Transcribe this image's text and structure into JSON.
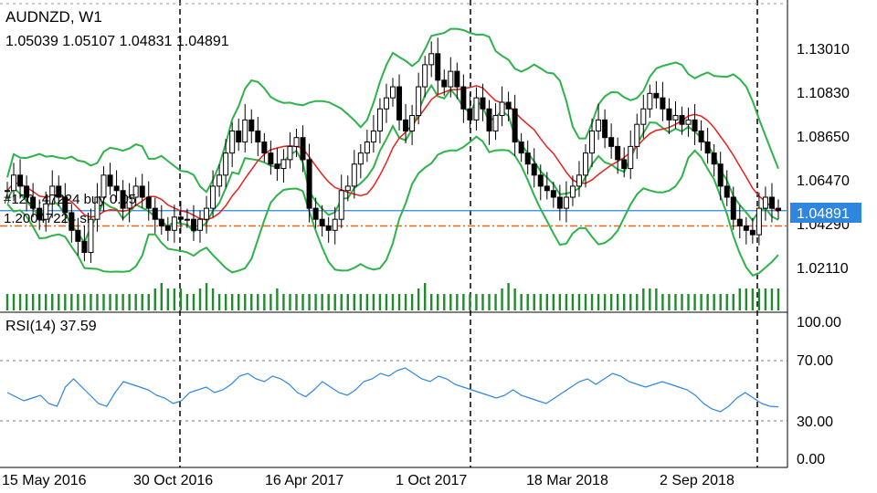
{
  "header": {
    "symbol": "AUDNZD, W1",
    "ohlc": "1.05039 1.05107 1.04831 1.04891",
    "order_line1": "#120 .47224 buy 0.05",
    "order_line2": "1.20047224 sl"
  },
  "colors": {
    "bull_candle": "#000000",
    "bear_candle": "#000000",
    "bollinger": "#2db34a",
    "ma": "#e8201c",
    "price_line": "#2e86de",
    "order_line": "#e8671c",
    "volume": "#1e8c2a",
    "rsi": "#2e86de",
    "price_badge_bg": "#2e86de",
    "price_badge_text": "#ffffff"
  },
  "price_axis": {
    "ticks": [
      "1.13010",
      "1.10830",
      "1.08650",
      "1.06470",
      "1.04290",
      "1.02110"
    ],
    "current_price": "1.04891"
  },
  "rsi_panel": {
    "label": "RSI(14) 37.59",
    "ticks": [
      "100.00",
      "70.00",
      "30.00",
      "0.00"
    ]
  },
  "time_axis": {
    "ticks": [
      "15 May 2016",
      "30 Oct 2016",
      "16 Apr 2017",
      "1 Oct 2017",
      "18 Mar 2018",
      "2 Sep 2018"
    ]
  },
  "chart_data": {
    "type": "line",
    "title": "AUDNZD, W1",
    "xlabel": "",
    "ylabel": "",
    "ylim": [
      1.005,
      1.14
    ],
    "x": [
      "15 May 2016",
      "30 Oct 2016",
      "16 Apr 2017",
      "1 Oct 2017",
      "18 Mar 2018",
      "2 Sep 2018"
    ],
    "series": [
      {
        "name": "",
        "values": [
          1.055,
          1.04,
          1.08,
          1.08,
          1.07,
          1.075
        ]
      }
    ],
    "close_series": [
      1.058,
      1.065,
      1.06,
      1.055,
      1.05,
      1.045,
      1.052,
      1.06,
      1.055,
      1.048,
      1.04,
      1.035,
      1.03,
      1.045,
      1.055,
      1.065,
      1.06,
      1.058,
      1.05,
      1.055,
      1.06,
      1.055,
      1.05,
      1.045,
      1.042,
      1.04,
      1.046,
      1.045,
      1.045,
      1.04,
      1.045,
      1.05,
      1.06,
      1.065,
      1.075,
      1.085,
      1.08,
      1.09,
      1.085,
      1.08,
      1.075,
      1.07,
      1.068,
      1.072,
      1.078,
      1.082,
      1.072,
      1.05,
      1.045,
      1.042,
      1.04,
      1.045,
      1.058,
      1.06,
      1.07,
      1.075,
      1.08,
      1.085,
      1.095,
      1.1,
      1.105,
      1.09,
      1.085,
      1.092,
      1.105,
      1.115,
      1.12,
      1.108,
      1.105,
      1.112,
      1.105,
      1.095,
      1.09,
      1.1,
      1.095,
      1.085,
      1.092,
      1.098,
      1.095,
      1.08,
      1.075,
      1.07,
      1.065,
      1.06,
      1.058,
      1.055,
      1.05,
      1.055,
      1.06,
      1.065,
      1.075,
      1.085,
      1.09,
      1.082,
      1.078,
      1.072,
      1.068,
      1.078,
      1.088,
      1.095,
      1.102,
      1.1,
      1.095,
      1.09,
      1.092,
      1.088,
      1.09,
      1.085,
      1.08,
      1.075,
      1.07,
      1.06,
      1.055,
      1.045,
      1.042,
      1.04,
      1.038,
      1.05,
      1.055,
      1.05,
      1.049
    ],
    "order_line_value": 1.042,
    "rsi_values": [
      48,
      45,
      42,
      44,
      46,
      40,
      38,
      52,
      58,
      52,
      46,
      40,
      38,
      48,
      56,
      54,
      52,
      50,
      46,
      44,
      40,
      42,
      48,
      50,
      52,
      48,
      50,
      54,
      60,
      62,
      58,
      56,
      60,
      58,
      54,
      48,
      45,
      50,
      56,
      52,
      48,
      46,
      50,
      56,
      58,
      62,
      60,
      64,
      66,
      62,
      58,
      56,
      60,
      58,
      54,
      52,
      50,
      48,
      46,
      44,
      46,
      50,
      46,
      44,
      42,
      40,
      44,
      48,
      52,
      56,
      58,
      54,
      58,
      62,
      60,
      56,
      54,
      52,
      54,
      56,
      54,
      52,
      50,
      46,
      40,
      36,
      34,
      38,
      44,
      48,
      44,
      40,
      38,
      37.59
    ],
    "rsi_ylim": [
      0,
      100
    ],
    "volume_values": [
      3,
      3,
      3,
      3,
      3,
      3,
      3,
      3,
      3,
      3,
      3,
      3,
      3,
      3,
      3,
      3,
      3,
      3,
      3,
      3,
      3,
      3,
      3,
      4,
      5,
      4,
      4,
      4,
      3,
      3,
      4,
      5,
      4,
      3,
      3,
      3,
      3,
      3,
      3,
      3,
      3,
      3,
      4,
      3,
      3,
      3,
      3,
      3,
      3,
      3,
      3,
      3,
      3,
      3,
      3,
      3,
      3,
      3,
      3,
      3,
      3,
      3,
      3,
      3,
      4,
      5,
      3,
      3,
      3,
      3,
      3,
      3,
      3,
      3,
      3,
      3,
      3,
      4,
      5,
      4,
      3,
      3,
      3,
      3,
      3,
      3,
      3,
      3,
      3,
      3,
      3,
      3,
      3,
      3,
      3,
      3,
      3,
      3,
      3,
      4,
      4,
      4,
      3,
      3,
      3,
      3,
      3,
      3,
      3,
      3,
      3,
      3,
      3,
      3,
      4,
      4,
      4,
      4,
      4,
      4,
      4,
      4,
      4,
      4
    ]
  }
}
